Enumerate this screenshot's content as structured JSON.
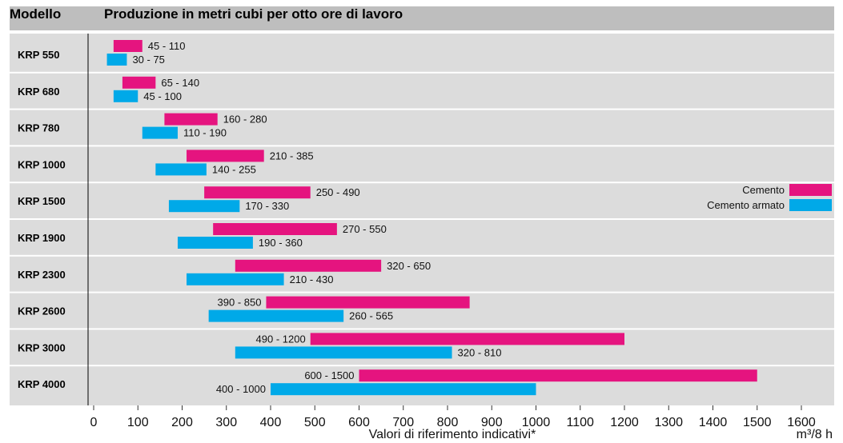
{
  "header": {
    "col1": "Modello",
    "col2": "Produzione in metri cubi per otto ore di lavoro"
  },
  "chart_data": {
    "type": "bar",
    "orientation": "horizontal-range",
    "categories": [
      "KRP 550",
      "KRP 680",
      "KRP 780",
      "KRP 1000",
      "KRP 1500",
      "KRP 1900",
      "KRP 2300",
      "KRP 2600",
      "KRP 3000",
      "KRP 4000"
    ],
    "series": [
      {
        "name": "Cemento",
        "color": "#e5147f",
        "ranges": [
          [
            45,
            110
          ],
          [
            65,
            140
          ],
          [
            160,
            280
          ],
          [
            210,
            385
          ],
          [
            250,
            490
          ],
          [
            270,
            550
          ],
          [
            320,
            650
          ],
          [
            390,
            850
          ],
          [
            490,
            1200
          ],
          [
            600,
            1500
          ]
        ],
        "labels": [
          "45 - 110",
          "65 - 140",
          "160 - 280",
          "210 - 385",
          "250 - 490",
          "270 - 550",
          "320 - 650",
          "390 - 850",
          "490 - 1200",
          "600 - 1500"
        ]
      },
      {
        "name": "Cemento armato",
        "color": "#00a9e8",
        "ranges": [
          [
            30,
            75
          ],
          [
            45,
            100
          ],
          [
            110,
            190
          ],
          [
            140,
            255
          ],
          [
            170,
            330
          ],
          [
            190,
            360
          ],
          [
            210,
            430
          ],
          [
            260,
            565
          ],
          [
            320,
            810
          ],
          [
            400,
            1000
          ]
        ],
        "labels": [
          "30 - 75",
          "45 - 100",
          "110 - 190",
          "140 - 255",
          "170 - 330",
          "190 - 360",
          "210 - 430",
          "260 - 565",
          "320 - 810",
          "400 - 1000"
        ]
      }
    ],
    "xticks": [
      0,
      100,
      200,
      300,
      400,
      500,
      600,
      700,
      800,
      900,
      1000,
      1100,
      1200,
      1300,
      1400,
      1500,
      1600
    ],
    "xlim": [
      0,
      1650
    ],
    "xlabel": "Valori di riferimento indicativi*",
    "unit": "m³/8 h",
    "legend": "right",
    "grid": true
  }
}
